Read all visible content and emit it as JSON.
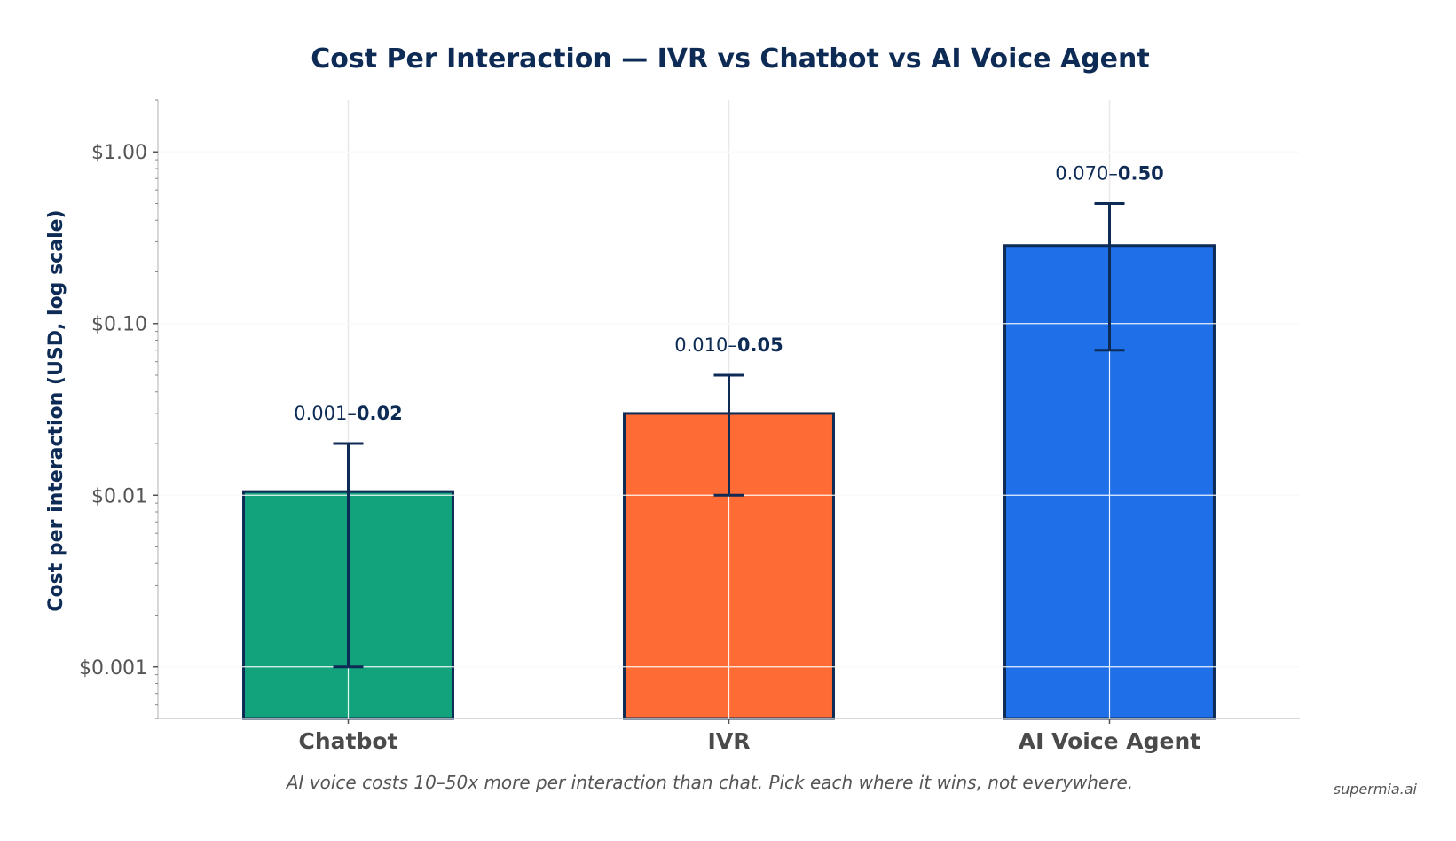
{
  "chart_data": {
    "type": "bar",
    "title": "Cost Per Interaction — IVR vs Chatbot vs AI Voice Agent",
    "ylabel": "Cost per interaction (USD, log scale)",
    "xlabel": "",
    "yscale": "log",
    "ylim": [
      0.0005,
      2.0
    ],
    "yticks": [
      0.001,
      0.01,
      0.1,
      1.0
    ],
    "ytick_labels": [
      "$0.001",
      "$0.01",
      "$0.10",
      "$1.00"
    ],
    "grid": true,
    "categories": [
      "Chatbot",
      "IVR",
      "AI Voice Agent"
    ],
    "values": [
      0.0105,
      0.03,
      0.285
    ],
    "ranges": [
      {
        "low": 0.001,
        "high": 0.02
      },
      {
        "low": 0.01,
        "high": 0.05
      },
      {
        "low": 0.07,
        "high": 0.5
      }
    ],
    "range_labels": [
      {
        "low": "0.001",
        "sep": "–",
        "high": "0.02"
      },
      {
        "low": "0.010",
        "sep": "–",
        "high": "0.05"
      },
      {
        "low": "0.070",
        "sep": "–",
        "high": "0.50"
      }
    ],
    "colors": [
      "#12a37c",
      "#ff6b35",
      "#1f6fe8"
    ],
    "edge_color": "#0d2b55",
    "caption": "AI voice costs 10–50x more per interaction than chat. Pick each where it wins, not everywhere.",
    "watermark": "supermia.ai"
  }
}
